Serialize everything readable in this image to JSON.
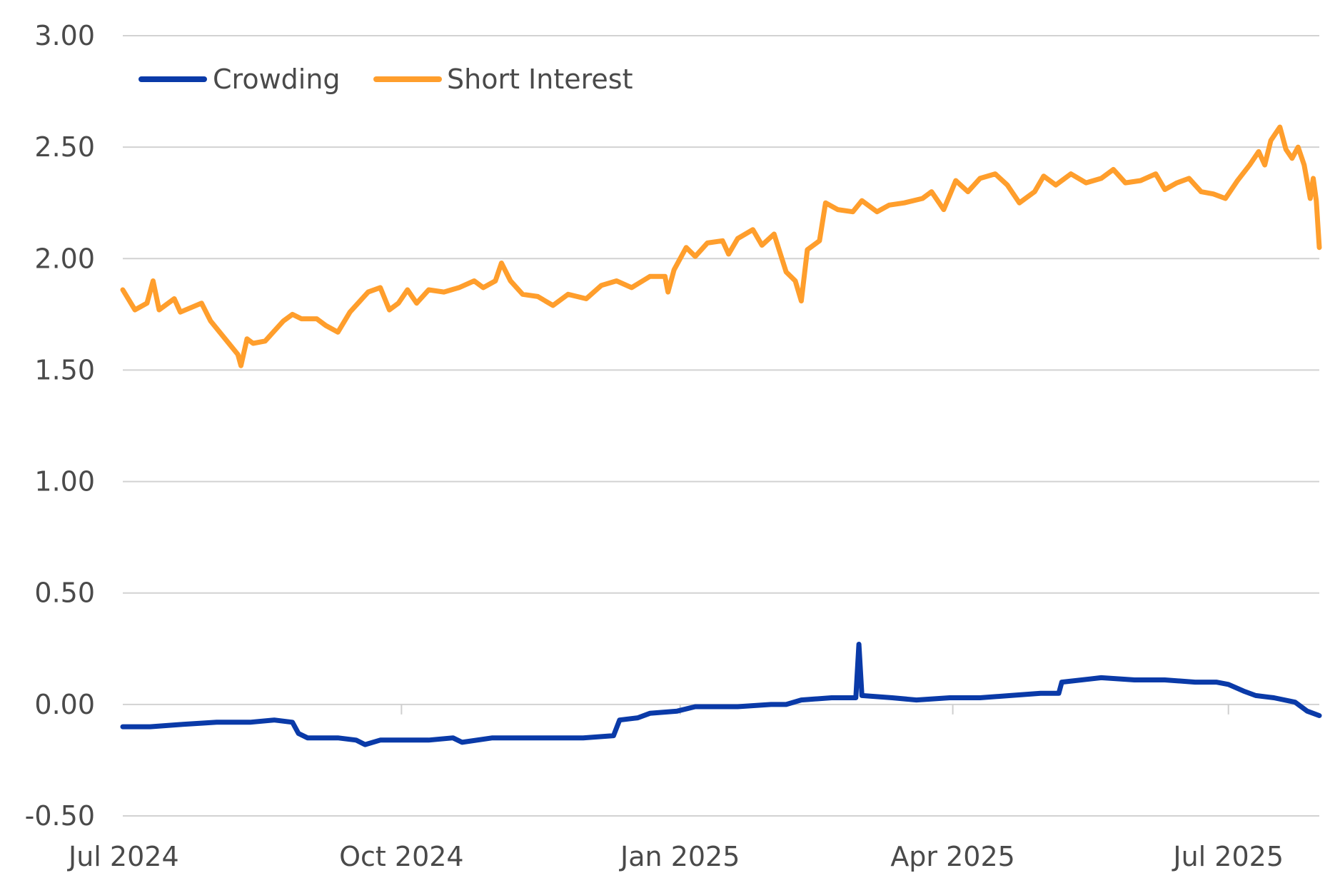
{
  "chart_data": {
    "type": "line",
    "title": "",
    "xlabel": "",
    "ylabel": "",
    "ylim": [
      -0.5,
      3.0
    ],
    "xlim": [
      "2024-07-01",
      "2025-07-31"
    ],
    "grid": "horizontal",
    "legend_position": "top-left",
    "y_ticks": [
      "3.00",
      "2.50",
      "2.00",
      "1.50",
      "1.00",
      "0.50",
      "0.00",
      "-0.50"
    ],
    "x_ticks": [
      {
        "label": "Jul 2024",
        "date": "2024-07-01"
      },
      {
        "label": "Oct 2024",
        "date": "2024-10-01"
      },
      {
        "label": "Jan 2025",
        "date": "2025-01-01"
      },
      {
        "label": "Apr 2025",
        "date": "2025-04-01"
      },
      {
        "label": "Jul 2025",
        "date": "2025-07-01"
      }
    ],
    "series": [
      {
        "name": "Crowding",
        "color": "#0a3aa8",
        "points": [
          [
            "2024-07-01",
            -0.1
          ],
          [
            "2024-07-10",
            -0.1
          ],
          [
            "2024-07-20",
            -0.09
          ],
          [
            "2024-08-01",
            -0.08
          ],
          [
            "2024-08-12",
            -0.08
          ],
          [
            "2024-08-20",
            -0.07
          ],
          [
            "2024-08-26",
            -0.08
          ],
          [
            "2024-08-28",
            -0.13
          ],
          [
            "2024-08-31",
            -0.15
          ],
          [
            "2024-09-10",
            -0.15
          ],
          [
            "2024-09-16",
            -0.16
          ],
          [
            "2024-09-19",
            -0.18
          ],
          [
            "2024-09-24",
            -0.16
          ],
          [
            "2024-10-01",
            -0.16
          ],
          [
            "2024-10-10",
            -0.16
          ],
          [
            "2024-10-18",
            -0.15
          ],
          [
            "2024-10-21",
            -0.17
          ],
          [
            "2024-10-31",
            -0.15
          ],
          [
            "2024-11-10",
            -0.15
          ],
          [
            "2024-11-20",
            -0.15
          ],
          [
            "2024-11-30",
            -0.15
          ],
          [
            "2024-12-10",
            -0.14
          ],
          [
            "2024-12-12",
            -0.07
          ],
          [
            "2024-12-18",
            -0.06
          ],
          [
            "2024-12-22",
            -0.04
          ],
          [
            "2024-12-31",
            -0.03
          ],
          [
            "2025-01-06",
            -0.01
          ],
          [
            "2025-01-20",
            -0.01
          ],
          [
            "2025-01-31",
            0.0
          ],
          [
            "2025-02-05",
            0.0
          ],
          [
            "2025-02-10",
            0.02
          ],
          [
            "2025-02-20",
            0.03
          ],
          [
            "2025-02-28",
            0.03
          ],
          [
            "2025-03-01",
            0.27
          ],
          [
            "2025-03-02",
            0.04
          ],
          [
            "2025-03-12",
            0.03
          ],
          [
            "2025-03-20",
            0.02
          ],
          [
            "2025-03-31",
            0.03
          ],
          [
            "2025-04-10",
            0.03
          ],
          [
            "2025-04-20",
            0.04
          ],
          [
            "2025-04-30",
            0.05
          ],
          [
            "2025-05-06",
            0.05
          ],
          [
            "2025-05-07",
            0.1
          ],
          [
            "2025-05-20",
            0.12
          ],
          [
            "2025-05-31",
            0.11
          ],
          [
            "2025-06-10",
            0.11
          ],
          [
            "2025-06-20",
            0.1
          ],
          [
            "2025-06-27",
            0.1
          ],
          [
            "2025-07-01",
            0.09
          ],
          [
            "2025-07-06",
            0.06
          ],
          [
            "2025-07-10",
            0.04
          ],
          [
            "2025-07-16",
            0.03
          ],
          [
            "2025-07-23",
            0.01
          ],
          [
            "2025-07-27",
            -0.03
          ],
          [
            "2025-07-31",
            -0.05
          ]
        ]
      },
      {
        "name": "Short Interest",
        "color": "#ff9e2c",
        "points": [
          [
            "2024-07-01",
            1.86
          ],
          [
            "2024-07-05",
            1.77
          ],
          [
            "2024-07-09",
            1.8
          ],
          [
            "2024-07-11",
            1.9
          ],
          [
            "2024-07-13",
            1.77
          ],
          [
            "2024-07-18",
            1.82
          ],
          [
            "2024-07-20",
            1.76
          ],
          [
            "2024-07-27",
            1.8
          ],
          [
            "2024-07-30",
            1.72
          ],
          [
            "2024-08-05",
            1.62
          ],
          [
            "2024-08-08",
            1.57
          ],
          [
            "2024-08-09",
            1.52
          ],
          [
            "2024-08-11",
            1.64
          ],
          [
            "2024-08-13",
            1.62
          ],
          [
            "2024-08-17",
            1.63
          ],
          [
            "2024-08-23",
            1.72
          ],
          [
            "2024-08-26",
            1.75
          ],
          [
            "2024-08-29",
            1.73
          ],
          [
            "2024-09-03",
            1.73
          ],
          [
            "2024-09-06",
            1.7
          ],
          [
            "2024-09-10",
            1.67
          ],
          [
            "2024-09-14",
            1.76
          ],
          [
            "2024-09-20",
            1.85
          ],
          [
            "2024-09-24",
            1.87
          ],
          [
            "2024-09-27",
            1.77
          ],
          [
            "2024-09-30",
            1.8
          ],
          [
            "2024-10-03",
            1.86
          ],
          [
            "2024-10-06",
            1.8
          ],
          [
            "2024-10-10",
            1.86
          ],
          [
            "2024-10-15",
            1.85
          ],
          [
            "2024-10-20",
            1.87
          ],
          [
            "2024-10-25",
            1.9
          ],
          [
            "2024-10-28",
            1.87
          ],
          [
            "2024-11-01",
            1.9
          ],
          [
            "2024-11-03",
            1.98
          ],
          [
            "2024-11-06",
            1.9
          ],
          [
            "2024-11-10",
            1.84
          ],
          [
            "2024-11-15",
            1.83
          ],
          [
            "2024-11-20",
            1.79
          ],
          [
            "2024-11-25",
            1.84
          ],
          [
            "2024-12-01",
            1.82
          ],
          [
            "2024-12-06",
            1.88
          ],
          [
            "2024-12-11",
            1.9
          ],
          [
            "2024-12-16",
            1.87
          ],
          [
            "2024-12-22",
            1.92
          ],
          [
            "2024-12-27",
            1.92
          ],
          [
            "2024-12-28",
            1.85
          ],
          [
            "2024-12-30",
            1.95
          ],
          [
            "2025-01-03",
            2.05
          ],
          [
            "2025-01-06",
            2.01
          ],
          [
            "2025-01-10",
            2.07
          ],
          [
            "2025-01-15",
            2.08
          ],
          [
            "2025-01-17",
            2.02
          ],
          [
            "2025-01-20",
            2.09
          ],
          [
            "2025-01-25",
            2.13
          ],
          [
            "2025-01-28",
            2.06
          ],
          [
            "2025-02-01",
            2.11
          ],
          [
            "2025-02-05",
            1.94
          ],
          [
            "2025-02-08",
            1.9
          ],
          [
            "2025-02-10",
            1.81
          ],
          [
            "2025-02-12",
            2.04
          ],
          [
            "2025-02-16",
            2.08
          ],
          [
            "2025-02-18",
            2.25
          ],
          [
            "2025-02-22",
            2.22
          ],
          [
            "2025-02-27",
            2.21
          ],
          [
            "2025-03-02",
            2.26
          ],
          [
            "2025-03-07",
            2.21
          ],
          [
            "2025-03-11",
            2.24
          ],
          [
            "2025-03-16",
            2.25
          ],
          [
            "2025-03-22",
            2.27
          ],
          [
            "2025-03-25",
            2.3
          ],
          [
            "2025-03-29",
            2.22
          ],
          [
            "2025-04-02",
            2.35
          ],
          [
            "2025-04-06",
            2.3
          ],
          [
            "2025-04-10",
            2.36
          ],
          [
            "2025-04-15",
            2.38
          ],
          [
            "2025-04-19",
            2.33
          ],
          [
            "2025-04-23",
            2.25
          ],
          [
            "2025-04-28",
            2.3
          ],
          [
            "2025-05-01",
            2.37
          ],
          [
            "2025-05-05",
            2.33
          ],
          [
            "2025-05-10",
            2.38
          ],
          [
            "2025-05-15",
            2.34
          ],
          [
            "2025-05-20",
            2.36
          ],
          [
            "2025-05-24",
            2.4
          ],
          [
            "2025-05-28",
            2.34
          ],
          [
            "2025-06-02",
            2.35
          ],
          [
            "2025-06-07",
            2.38
          ],
          [
            "2025-06-10",
            2.31
          ],
          [
            "2025-06-14",
            2.34
          ],
          [
            "2025-06-18",
            2.36
          ],
          [
            "2025-06-22",
            2.3
          ],
          [
            "2025-06-26",
            2.29
          ],
          [
            "2025-06-30",
            2.27
          ],
          [
            "2025-07-04",
            2.35
          ],
          [
            "2025-07-08",
            2.42
          ],
          [
            "2025-07-11",
            2.48
          ],
          [
            "2025-07-13",
            2.42
          ],
          [
            "2025-07-15",
            2.53
          ],
          [
            "2025-07-18",
            2.59
          ],
          [
            "2025-07-20",
            2.49
          ],
          [
            "2025-07-22",
            2.45
          ],
          [
            "2025-07-24",
            2.5
          ],
          [
            "2025-07-26",
            2.42
          ],
          [
            "2025-07-28",
            2.27
          ],
          [
            "2025-07-29",
            2.36
          ],
          [
            "2025-07-30",
            2.26
          ],
          [
            "2025-07-31",
            2.05
          ]
        ]
      }
    ]
  }
}
